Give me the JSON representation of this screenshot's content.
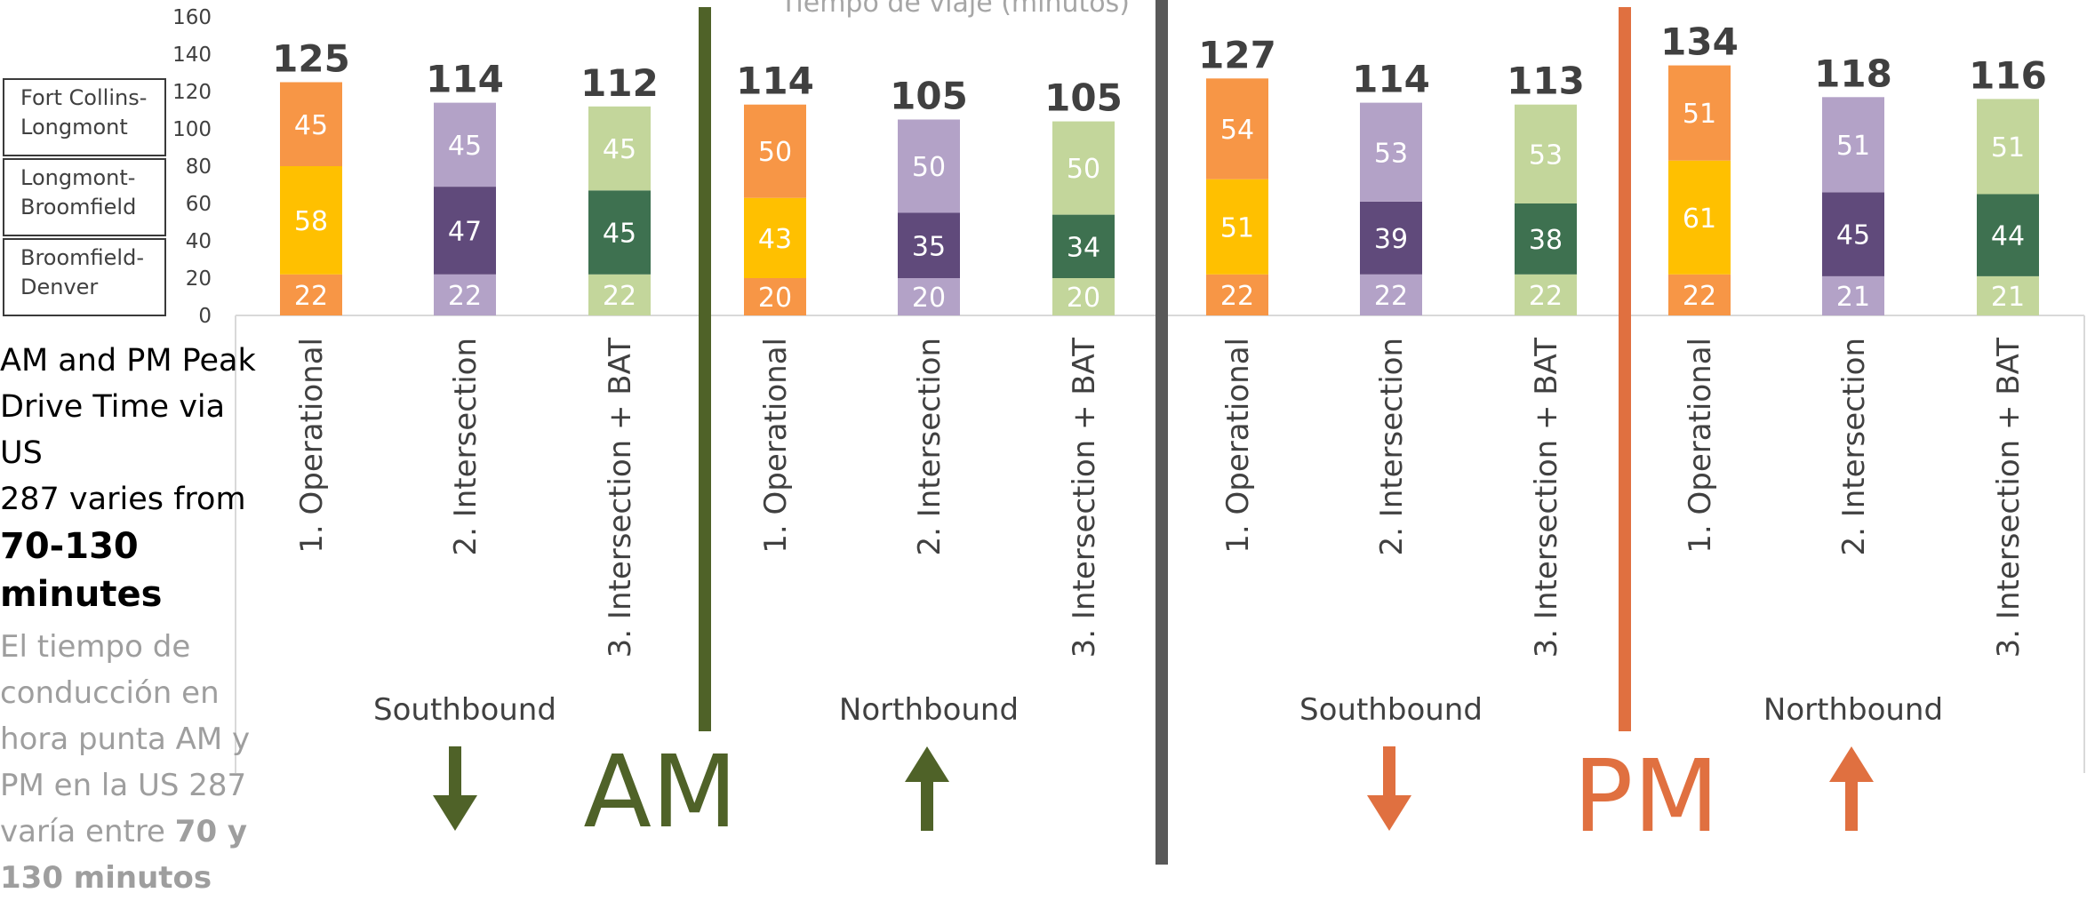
{
  "legend": {
    "segments": [
      "Fort Collins-\nLongmont",
      "Longmont-\nBroomfield",
      "Broomfield-\nDenver"
    ],
    "lines": [
      [
        "Fort Collins-",
        "Longmont"
      ],
      [
        "Longmont-",
        "Broomfield"
      ],
      [
        "Broomfield-",
        "Denver"
      ]
    ]
  },
  "side_note": {
    "en_lines": [
      "AM and PM Peak",
      "Drive Time via US",
      "287 varies from"
    ],
    "en_bold_lines": [
      "70-130",
      "minutes"
    ],
    "es_lines": [
      "El tiempo de",
      "conducción en",
      "hora punta AM y",
      "PM en la US 287"
    ],
    "es_last_prefix": "varía entre ",
    "es_last_bold": "70 y",
    "es_bold_line": "130 minutos"
  },
  "top_title": "Tiempo de viaje (minutos)",
  "colors": {
    "operational_top": "#f79646",
    "operational_mid": "#ffc000",
    "operational_bottom": "#f79646",
    "intersection_top": "#b3a2c7",
    "intersection_mid": "#604a7b",
    "intersection_bottom": "#b3a2c7",
    "bat_top": "#c3d69b",
    "bat_mid": "#3e7150",
    "bat_bottom": "#c3d69b",
    "am_color": "#4f6228",
    "pm_color": "#e07040",
    "divider": "#595959"
  },
  "chart_data": {
    "type": "bar",
    "stacked": true,
    "ylim": [
      0,
      160
    ],
    "yticks": [
      0,
      20,
      40,
      60,
      80,
      100,
      120,
      140,
      160
    ],
    "categories": [
      "1. Operational",
      "2. Intersection",
      "3. Intersection + BAT",
      "1. Operational",
      "2. Intersection",
      "3. Intersection + BAT",
      "1. Operational",
      "2. Intersection",
      "3. Intersection + BAT",
      "1. Operational",
      "2. Intersection",
      "3. Intersection + BAT"
    ],
    "groups": [
      {
        "period": "AM",
        "direction": "Southbound",
        "indices": [
          0,
          1,
          2
        ]
      },
      {
        "period": "AM",
        "direction": "Northbound",
        "indices": [
          3,
          4,
          5
        ]
      },
      {
        "period": "PM",
        "direction": "Southbound",
        "indices": [
          6,
          7,
          8
        ]
      },
      {
        "period": "PM",
        "direction": "Northbound",
        "indices": [
          9,
          10,
          11
        ]
      }
    ],
    "series": [
      {
        "name": "Broomfield-Denver",
        "values": [
          22,
          22,
          22,
          20,
          20,
          20,
          22,
          22,
          22,
          22,
          21,
          21
        ]
      },
      {
        "name": "Longmont-Broomfield",
        "values": [
          58,
          47,
          45,
          43,
          35,
          34,
          51,
          39,
          38,
          61,
          45,
          44
        ]
      },
      {
        "name": "Fort Collins-Longmont",
        "values": [
          45,
          45,
          45,
          50,
          50,
          50,
          54,
          53,
          53,
          51,
          51,
          51
        ]
      }
    ],
    "totals": [
      125,
      114,
      112,
      114,
      105,
      105,
      127,
      114,
      113,
      134,
      118,
      116
    ],
    "direction_labels": [
      "Southbound",
      "Northbound",
      "Southbound",
      "Northbound"
    ],
    "period_labels": [
      "AM",
      "PM"
    ]
  }
}
